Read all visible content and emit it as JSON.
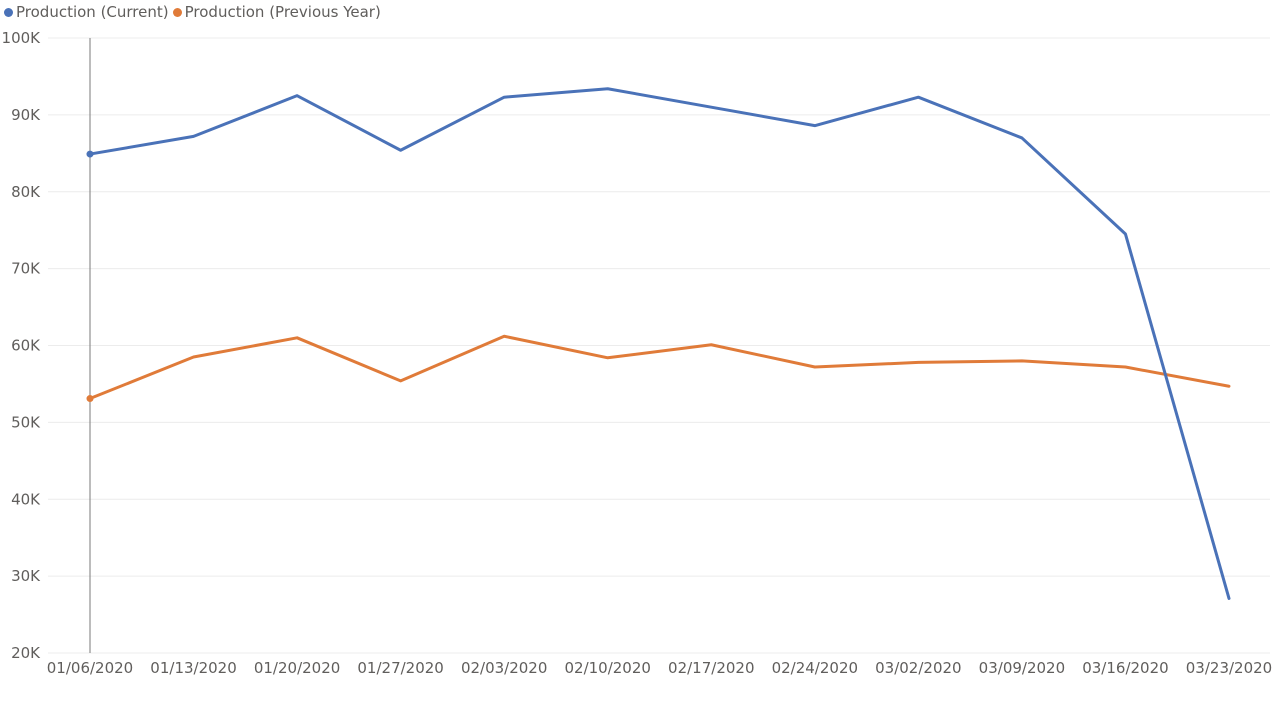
{
  "chart_data": {
    "type": "line",
    "title": "",
    "xlabel": "",
    "ylabel": "",
    "legend_position": "top-left",
    "grid": true,
    "ylim": [
      20000,
      100000
    ],
    "y_ticks": [
      20000,
      30000,
      40000,
      50000,
      60000,
      70000,
      80000,
      90000,
      100000
    ],
    "y_tick_labels": [
      "20K",
      "30K",
      "40K",
      "50K",
      "60K",
      "70K",
      "80K",
      "90K",
      "100K"
    ],
    "categories": [
      "01/06/2020",
      "01/13/2020",
      "01/20/2020",
      "01/27/2020",
      "02/03/2020",
      "02/10/2020",
      "02/17/2020",
      "02/24/2020",
      "03/02/2020",
      "03/09/2020",
      "03/16/2020",
      "03/23/2020"
    ],
    "hover_category": "01/06/2020",
    "series": [
      {
        "name": "Production (Current)",
        "color": "#4a72b8",
        "values": [
          84900,
          87200,
          92500,
          85400,
          92300,
          93400,
          91000,
          88600,
          92300,
          87000,
          74500,
          27100
        ]
      },
      {
        "name": "Production (Previous Year)",
        "color": "#e07b39",
        "values": [
          53100,
          58500,
          61000,
          55400,
          61200,
          58400,
          60100,
          57200,
          57800,
          58000,
          57200,
          54700
        ]
      }
    ]
  }
}
